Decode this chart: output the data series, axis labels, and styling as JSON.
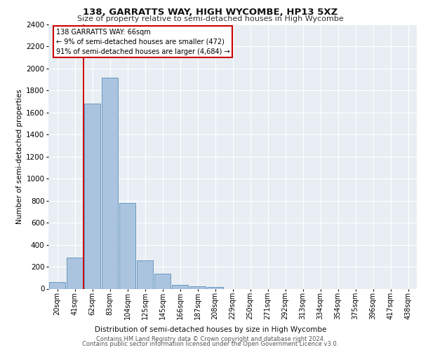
{
  "title": "138, GARRATTS WAY, HIGH WYCOMBE, HP13 5XZ",
  "subtitle": "Size of property relative to semi-detached houses in High Wycombe",
  "xlabel": "Distribution of semi-detached houses by size in High Wycombe",
  "ylabel": "Number of semi-detached properties",
  "bar_labels": [
    "20sqm",
    "41sqm",
    "62sqm",
    "83sqm",
    "104sqm",
    "125sqm",
    "145sqm",
    "166sqm",
    "187sqm",
    "208sqm",
    "229sqm",
    "250sqm",
    "271sqm",
    "292sqm",
    "313sqm",
    "334sqm",
    "354sqm",
    "375sqm",
    "396sqm",
    "417sqm",
    "438sqm"
  ],
  "bar_values": [
    60,
    285,
    1680,
    1920,
    780,
    255,
    135,
    35,
    25,
    18,
    0,
    0,
    0,
    0,
    0,
    0,
    0,
    0,
    0,
    0,
    0
  ],
  "bar_color": "#aac4e0",
  "bar_edge_color": "#5b8db8",
  "property_line_color": "#cc0000",
  "annotation_text": "138 GARRATTS WAY: 66sqm\n← 9% of semi-detached houses are smaller (472)\n91% of semi-detached houses are larger (4,684) →",
  "annotation_box_color": "#ffffff",
  "annotation_box_edge": "#cc0000",
  "ylim": [
    0,
    2400
  ],
  "yticks": [
    0,
    200,
    400,
    600,
    800,
    1000,
    1200,
    1400,
    1600,
    1800,
    2000,
    2200,
    2400
  ],
  "background_color": "#e8eef4",
  "footer_line1": "Contains HM Land Registry data © Crown copyright and database right 2024.",
  "footer_line2": "Contains public sector information licensed under the Open Government Licence v3.0."
}
